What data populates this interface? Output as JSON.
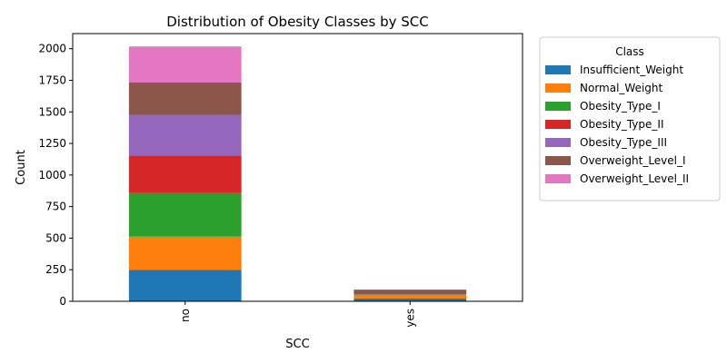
{
  "chart_data": {
    "type": "bar",
    "stacked": true,
    "title": "Distribution of Obesity Classes by SCC",
    "xlabel": "SCC",
    "ylabel": "Count",
    "categories": [
      "no",
      "yes"
    ],
    "ylim": [
      0,
      2120
    ],
    "yticks": [
      0,
      250,
      500,
      750,
      1000,
      1250,
      1500,
      1750,
      2000
    ],
    "grid": false,
    "legend": {
      "title": "Class",
      "placement": "outside-right"
    },
    "series": [
      {
        "name": "Insufficient_Weight",
        "color": "#1f77b4",
        "values": [
          250,
          22
        ]
      },
      {
        "name": "Normal_Weight",
        "color": "#ff7f0e",
        "values": [
          262,
          26
        ]
      },
      {
        "name": "Obesity_Type_I",
        "color": "#2ca02c",
        "values": [
          346,
          5
        ]
      },
      {
        "name": "Obesity_Type_II",
        "color": "#d62728",
        "values": [
          295,
          2
        ]
      },
      {
        "name": "Obesity_Type_III",
        "color": "#9467bd",
        "values": [
          324,
          0
        ]
      },
      {
        "name": "Overweight_Level_I",
        "color": "#8c564b",
        "values": [
          255,
          35
        ]
      },
      {
        "name": "Overweight_Level_II",
        "color": "#e377c2",
        "values": [
          286,
          4
        ]
      }
    ]
  }
}
